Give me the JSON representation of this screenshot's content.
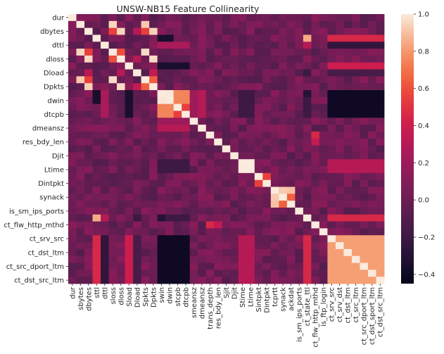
{
  "chart_data": {
    "type": "heatmap",
    "title": "UNSW-NB15 Feature Collinearity",
    "xlabel": "",
    "ylabel": "",
    "variables": [
      "dur",
      "sbytes",
      "dbytes",
      "sttl",
      "dttl",
      "sloss",
      "dloss",
      "Sload",
      "Dload",
      "Spkts",
      "Dpkts",
      "swin",
      "dwin",
      "stcpb",
      "dtcpb",
      "smeansz",
      "dmeansz",
      "trans_depth",
      "res_bdy_len",
      "Sjit",
      "Djit",
      "Stime",
      "Ltime",
      "Sintpkt",
      "Dintpkt",
      "tcprtt",
      "synack",
      "ackdat",
      "is_sm_ips_ports",
      "ct_state_ttl",
      "ct_flw_http_mthd",
      "is_ftp_login",
      "ct_srv_src",
      "ct_srv_dst",
      "ct_dst_ltm",
      "ct_src_ltm",
      "ct_src_dport_ltm",
      "ct_dst_sport_ltm",
      "ct_dst_src_ltm"
    ],
    "y_tick_labels": [
      "dur",
      "dbytes",
      "dttl",
      "dloss",
      "Dload",
      "Dpkts",
      "dwin",
      "dtcpb",
      "dmeansz",
      "res_bdy_len",
      "Djit",
      "Ltime",
      "Dintpkt",
      "synack",
      "is_sm_ips_ports",
      "ct_flw_http_mthd",
      "ct_srv_src",
      "ct_dst_ltm",
      "ct_src_dport_ltm",
      "ct_dst_src_ltm"
    ],
    "colorbar": {
      "range": [
        -0.45,
        1.0
      ],
      "ticks": [
        "1.0",
        "0.8",
        "0.6",
        "0.4",
        "0.2",
        "0.0",
        "−0.2",
        "−0.4"
      ],
      "tick_values": [
        1.0,
        0.8,
        0.6,
        0.4,
        0.2,
        0.0,
        -0.2,
        -0.4
      ]
    },
    "colormap": "rocket",
    "grid": false,
    "legend": "right"
  }
}
